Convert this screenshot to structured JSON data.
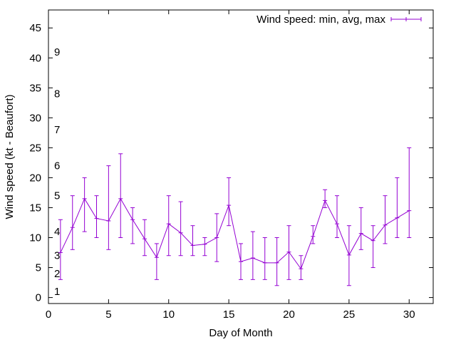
{
  "chart_data": {
    "type": "line",
    "title": "",
    "xlabel": "Day of Month",
    "ylabel": "Wind speed (kt - Beaufort)",
    "xlim": [
      0,
      32
    ],
    "ylim": [
      -1,
      48
    ],
    "x_ticks": [
      0,
      5,
      10,
      15,
      20,
      25,
      30
    ],
    "y_ticks": [
      0,
      5,
      10,
      15,
      20,
      25,
      30,
      35,
      40,
      45
    ],
    "grid": false,
    "legend": {
      "position": "top-right"
    },
    "beaufort_labels": [
      {
        "label": "1",
        "y": 1
      },
      {
        "label": "2",
        "y": 4
      },
      {
        "label": "3",
        "y": 7
      },
      {
        "label": "4",
        "y": 11
      },
      {
        "label": "5",
        "y": 17
      },
      {
        "label": "6",
        "y": 22
      },
      {
        "label": "7",
        "y": 28
      },
      {
        "label": "8",
        "y": 34
      },
      {
        "label": "9",
        "y": 41
      }
    ],
    "series": [
      {
        "name": "Wind speed: min, avg, max",
        "color": "#9400d3",
        "x": [
          1,
          2,
          3,
          4,
          5,
          6,
          7,
          8,
          9,
          10,
          11,
          12,
          13,
          14,
          15,
          16,
          17,
          18,
          19,
          20,
          21,
          22,
          23,
          24,
          25,
          26,
          27,
          28,
          29,
          30
        ],
        "avg": [
          7.5,
          11.7,
          16.5,
          13.2,
          12.8,
          16.5,
          13.0,
          9.8,
          6.7,
          12.3,
          10.8,
          8.7,
          8.9,
          10.0,
          15.4,
          6.0,
          6.6,
          5.8,
          5.8,
          7.6,
          4.8,
          10.2,
          16.2,
          12.3,
          7.1,
          10.7,
          9.5,
          12.1,
          13.3,
          14.5
        ],
        "min": [
          3,
          8,
          11,
          10,
          8,
          10,
          9,
          7,
          3,
          7,
          7,
          7,
          7,
          6,
          12,
          3,
          3,
          3,
          2,
          3,
          3,
          9,
          15,
          10,
          2,
          8,
          5,
          9,
          10,
          10
        ],
        "max": [
          13,
          17,
          20,
          17,
          22,
          24,
          15,
          13,
          9,
          17,
          16,
          12,
          10,
          14,
          20,
          9,
          11,
          10,
          10,
          12,
          7,
          12,
          18,
          17,
          12,
          15,
          12,
          17,
          20,
          25
        ]
      }
    ]
  }
}
